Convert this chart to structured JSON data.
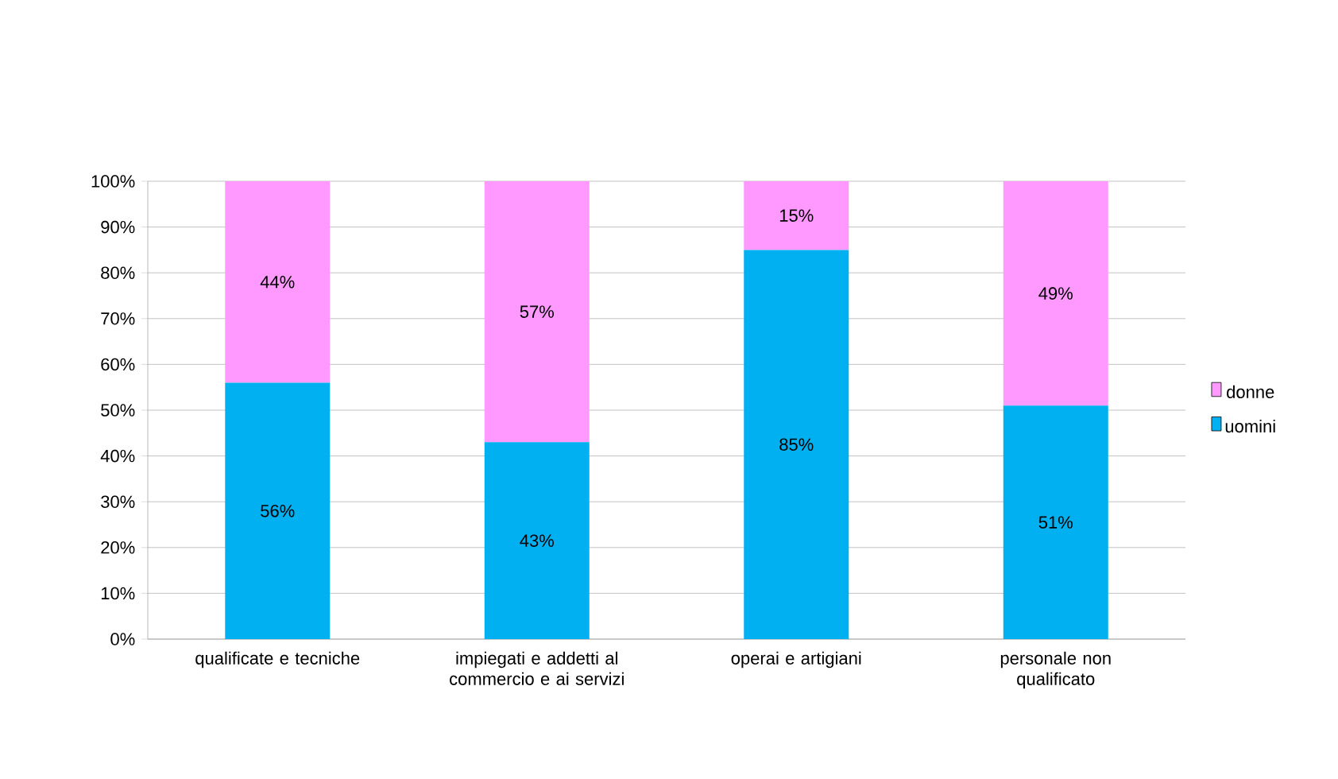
{
  "chart_data": {
    "type": "bar",
    "stacked": true,
    "categories": [
      "qualificate e tecniche",
      "impiegati e addetti al commercio e ai servizi",
      "operai e artigiani",
      "personale non qualificato"
    ],
    "series": [
      {
        "name": "uomini",
        "color": "#00b0f0",
        "values": [
          56,
          43,
          85,
          51
        ],
        "value_labels": [
          "56%",
          "43%",
          "85%",
          "51%"
        ]
      },
      {
        "name": "donne",
        "color": "#ff99ff",
        "values": [
          44,
          57,
          15,
          49
        ],
        "value_labels": [
          "44%",
          "57%",
          "15%",
          "49%"
        ]
      }
    ],
    "ylim": [
      0,
      100
    ],
    "yticks": [
      {
        "value": 0,
        "label": "0%"
      },
      {
        "value": 10,
        "label": "10%"
      },
      {
        "value": 20,
        "label": "20%"
      },
      {
        "value": 30,
        "label": "30%"
      },
      {
        "value": 40,
        "label": "40%"
      },
      {
        "value": 50,
        "label": "50%"
      },
      {
        "value": 60,
        "label": "60%"
      },
      {
        "value": 70,
        "label": "70%"
      },
      {
        "value": 80,
        "label": "80%"
      },
      {
        "value": 90,
        "label": "90%"
      },
      {
        "value": 100,
        "label": "100%"
      }
    ],
    "grid": "y",
    "legend": "right"
  }
}
